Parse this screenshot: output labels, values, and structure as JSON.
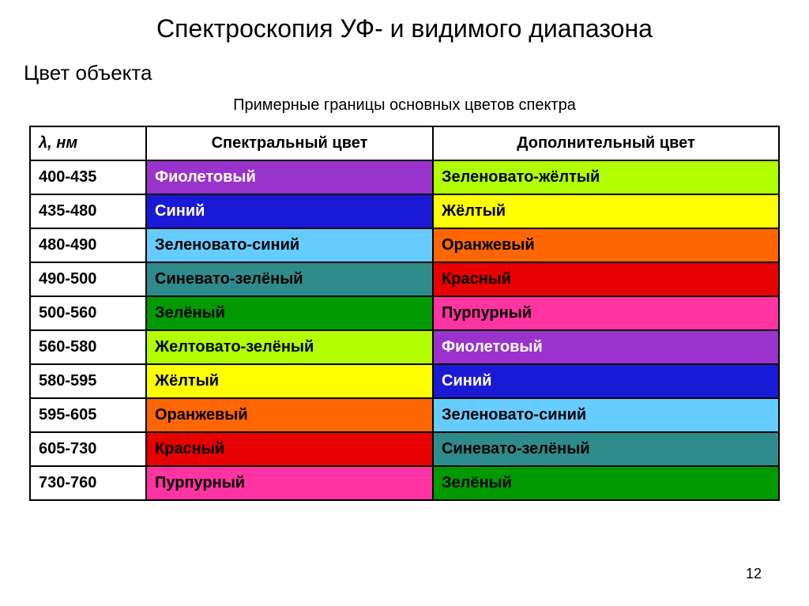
{
  "title": "Спектроскопия УФ- и видимого диапазона",
  "subtitle": "Цвет объекта",
  "caption": "Примерные границы основных цветов спектра",
  "page_number": "12",
  "columns": {
    "col0": "λ, нм",
    "col1": "Спектральный цвет",
    "col2": "Дополнительный цвет"
  },
  "rows": [
    {
      "range": "400-435",
      "spec_label": "Фиолетовый",
      "spec_bg": "#9933cc",
      "spec_fg": "#ffffff",
      "comp_label": "Зеленовато-жёлтый",
      "comp_bg": "#b2ff00",
      "comp_fg": "#000000"
    },
    {
      "range": "435-480",
      "spec_label": "Синий",
      "spec_bg": "#1a1ad6",
      "spec_fg": "#ffffff",
      "comp_label": "Жёлтый",
      "comp_bg": "#ffff00",
      "comp_fg": "#000000"
    },
    {
      "range": "480-490",
      "spec_label": "Зеленовато-синий",
      "spec_bg": "#66ccff",
      "spec_fg": "#000000",
      "comp_label": "Оранжевый",
      "comp_bg": "#ff6600",
      "comp_fg": "#000000"
    },
    {
      "range": "490-500",
      "spec_label": "Синевато-зелёный",
      "spec_bg": "#2e8b8b",
      "spec_fg": "#000000",
      "comp_label": "Красный",
      "comp_bg": "#e60000",
      "comp_fg": "#000000"
    },
    {
      "range": "500-560",
      "spec_label": "Зелёный",
      "spec_bg": "#009900",
      "spec_fg": "#000000",
      "comp_label": "Пурпурный",
      "comp_bg": "#ff33a1",
      "comp_fg": "#000000"
    },
    {
      "range": "560-580",
      "spec_label": "Желтовато-зелёный",
      "spec_bg": "#b2ff00",
      "spec_fg": "#000000",
      "comp_label": "Фиолетовый",
      "comp_bg": "#9933cc",
      "comp_fg": "#ffffff"
    },
    {
      "range": "580-595",
      "spec_label": "Жёлтый",
      "spec_bg": "#ffff00",
      "spec_fg": "#000000",
      "comp_label": "Синий",
      "comp_bg": "#1a1ad6",
      "comp_fg": "#ffffff"
    },
    {
      "range": "595-605",
      "spec_label": "Оранжевый",
      "spec_bg": "#ff6600",
      "spec_fg": "#000000",
      "comp_label": "Зеленовато-синий",
      "comp_bg": "#66ccff",
      "comp_fg": "#000000"
    },
    {
      "range": "605-730",
      "spec_label": "Красный",
      "spec_bg": "#e60000",
      "spec_fg": "#000000",
      "comp_label": "Синевато-зелёный",
      "comp_bg": "#2e8b8b",
      "comp_fg": "#000000"
    },
    {
      "range": "730-760",
      "spec_label": "Пурпурный",
      "spec_bg": "#ff33a1",
      "spec_fg": "#000000",
      "comp_label": "Зелёный",
      "comp_bg": "#009900",
      "comp_fg": "#000000"
    }
  ]
}
